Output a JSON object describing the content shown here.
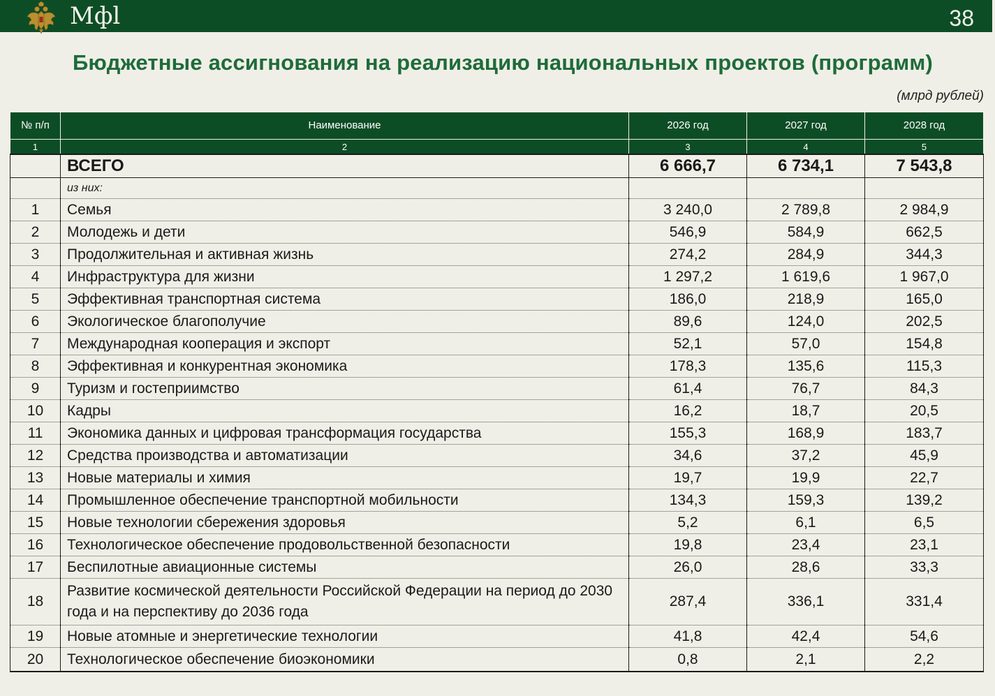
{
  "header": {
    "logo": "Мфl",
    "page_number": "38"
  },
  "title": "Бюджетные ассигнования на реализацию национальных проектов (программ)",
  "units": "(млрд рублей)",
  "table": {
    "columns": [
      "№ п/п",
      "Наименование",
      "2026 год",
      "2027 год",
      "2028 год"
    ],
    "column_numbers": [
      "1",
      "2",
      "3",
      "4",
      "5"
    ],
    "total": {
      "label": "ВСЕГО",
      "values": [
        "6 666,7",
        "6 734,1",
        "7 543,8"
      ]
    },
    "subheading": "из них:",
    "rows": [
      {
        "num": "1",
        "name": "Семья",
        "values": [
          "3 240,0",
          "2 789,8",
          "2 984,9"
        ]
      },
      {
        "num": "2",
        "name": "Молодежь и дети",
        "values": [
          "546,9",
          "584,9",
          "662,5"
        ]
      },
      {
        "num": "3",
        "name": "Продолжительная и активная жизнь",
        "values": [
          "274,2",
          "284,9",
          "344,3"
        ]
      },
      {
        "num": "4",
        "name": "Инфраструктура для жизни",
        "values": [
          "1 297,2",
          "1 619,6",
          "1 967,0"
        ]
      },
      {
        "num": "5",
        "name": "Эффективная транспортная система",
        "values": [
          "186,0",
          "218,9",
          "165,0"
        ]
      },
      {
        "num": "6",
        "name": "Экологическое благополучие",
        "values": [
          "89,6",
          "124,0",
          "202,5"
        ]
      },
      {
        "num": "7",
        "name": "Международная кооперация и экспорт",
        "values": [
          "52,1",
          "57,0",
          "154,8"
        ]
      },
      {
        "num": "8",
        "name": "Эффективная и конкурентная экономика",
        "values": [
          "178,3",
          "135,6",
          "115,3"
        ]
      },
      {
        "num": "9",
        "name": "Туризм и гостеприимство",
        "values": [
          "61,4",
          "76,7",
          "84,3"
        ]
      },
      {
        "num": "10",
        "name": "Кадры",
        "values": [
          "16,2",
          "18,7",
          "20,5"
        ]
      },
      {
        "num": "11",
        "name": "Экономика данных и цифровая трансформация государства",
        "values": [
          "155,3",
          "168,9",
          "183,7"
        ]
      },
      {
        "num": "12",
        "name": "Средства производства и автоматизации",
        "values": [
          "34,6",
          "37,2",
          "45,9"
        ]
      },
      {
        "num": "13",
        "name": "Новые материалы и химия",
        "values": [
          "19,7",
          "19,9",
          "22,7"
        ]
      },
      {
        "num": "14",
        "name": "Промышленное обеспечение транспортной мобильности",
        "values": [
          "134,3",
          "159,3",
          "139,2"
        ]
      },
      {
        "num": "15",
        "name": "Новые технологии сбережения здоровья",
        "values": [
          "5,2",
          "6,1",
          "6,5"
        ]
      },
      {
        "num": "16",
        "name": "Технологическое обеспечение продовольственной безопасности",
        "values": [
          "19,8",
          "23,4",
          "23,1"
        ]
      },
      {
        "num": "17",
        "name": "Беспилотные авиационные системы",
        "values": [
          "26,0",
          "28,6",
          "33,3"
        ]
      },
      {
        "num": "18",
        "name": "Развитие космической деятельности Российской Федерации на период до 2030 года и на перспективу до 2036 года",
        "values": [
          "287,4",
          "336,1",
          "331,4"
        ]
      },
      {
        "num": "19",
        "name": "Новые атомные и энергетические технологии",
        "values": [
          "41,8",
          "42,4",
          "54,6"
        ]
      },
      {
        "num": "20",
        "name": "Технологическое обеспечение биоэкономики",
        "values": [
          "0,8",
          "2,1",
          "2,2"
        ]
      }
    ]
  },
  "colors": {
    "brand_green": "#0d4d26",
    "title_green": "#1e6b3a",
    "background": "#f0efe7"
  }
}
